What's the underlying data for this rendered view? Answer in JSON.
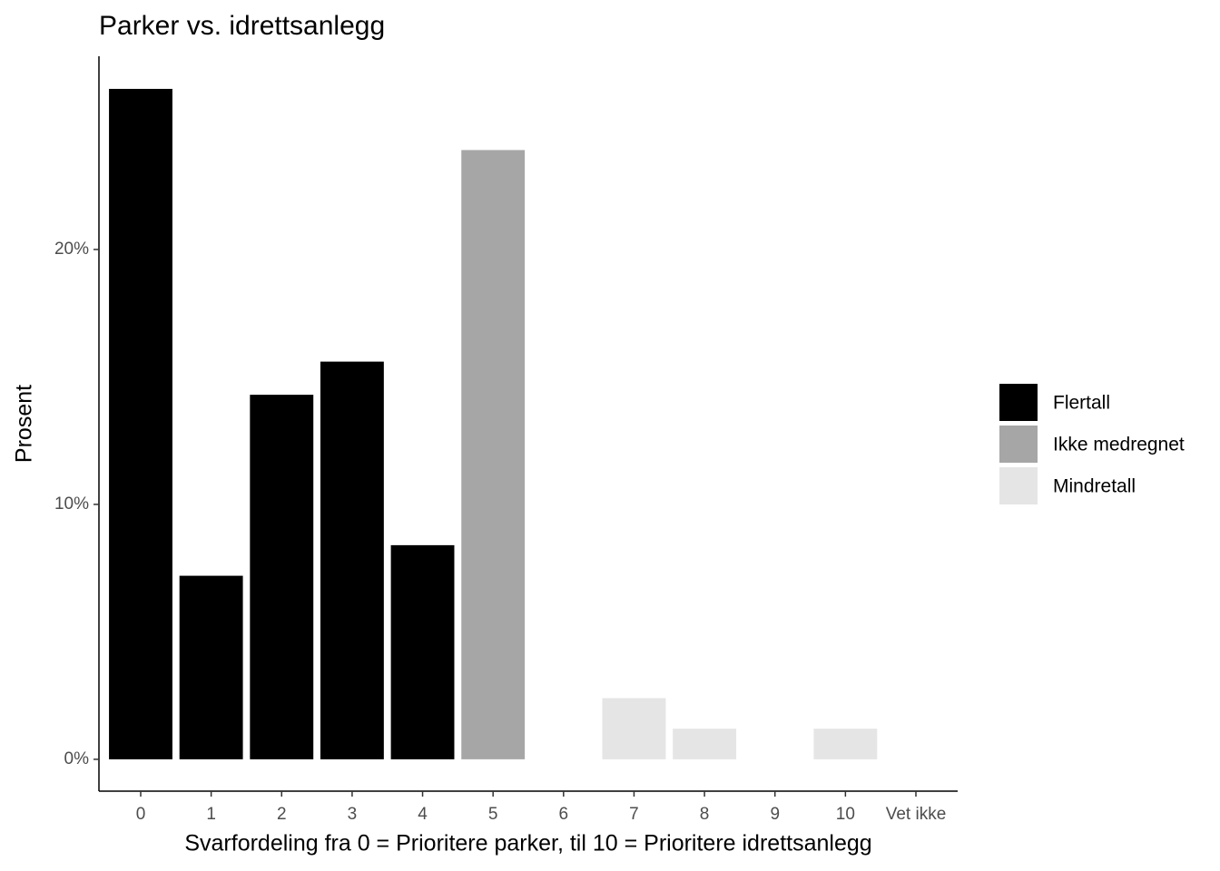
{
  "chart_data": {
    "type": "bar",
    "title": "Parker vs. idrettsanlegg",
    "x_label": "Svarfordeling fra 0 = Prioritere parker, til 10 = Prioritere idrettsanlegg",
    "y_label": "Prosent",
    "categories": [
      "0",
      "1",
      "2",
      "3",
      "4",
      "5",
      "6",
      "7",
      "8",
      "9",
      "10",
      "Vet ikke"
    ],
    "series": [
      {
        "name": "Flertall",
        "color": "#000000",
        "values": [
          26.3,
          7.2,
          14.3,
          15.6,
          8.4,
          null,
          null,
          null,
          null,
          null,
          null,
          null
        ]
      },
      {
        "name": "Ikke medregnet",
        "color": "#a6a6a6",
        "values": [
          null,
          null,
          null,
          null,
          null,
          23.9,
          null,
          null,
          null,
          null,
          null,
          null
        ]
      },
      {
        "name": "Mindretall",
        "color": "#e5e5e5",
        "values": [
          null,
          null,
          null,
          null,
          null,
          null,
          null,
          2.4,
          1.2,
          null,
          1.2,
          null
        ]
      }
    ],
    "ylim": [
      -1.25,
      27.58
    ],
    "yticks": [
      {
        "value": 0,
        "label": "0%"
      },
      {
        "value": 10,
        "label": "10%"
      },
      {
        "value": 20,
        "label": "20%"
      }
    ],
    "grid": false,
    "legend": "right"
  }
}
